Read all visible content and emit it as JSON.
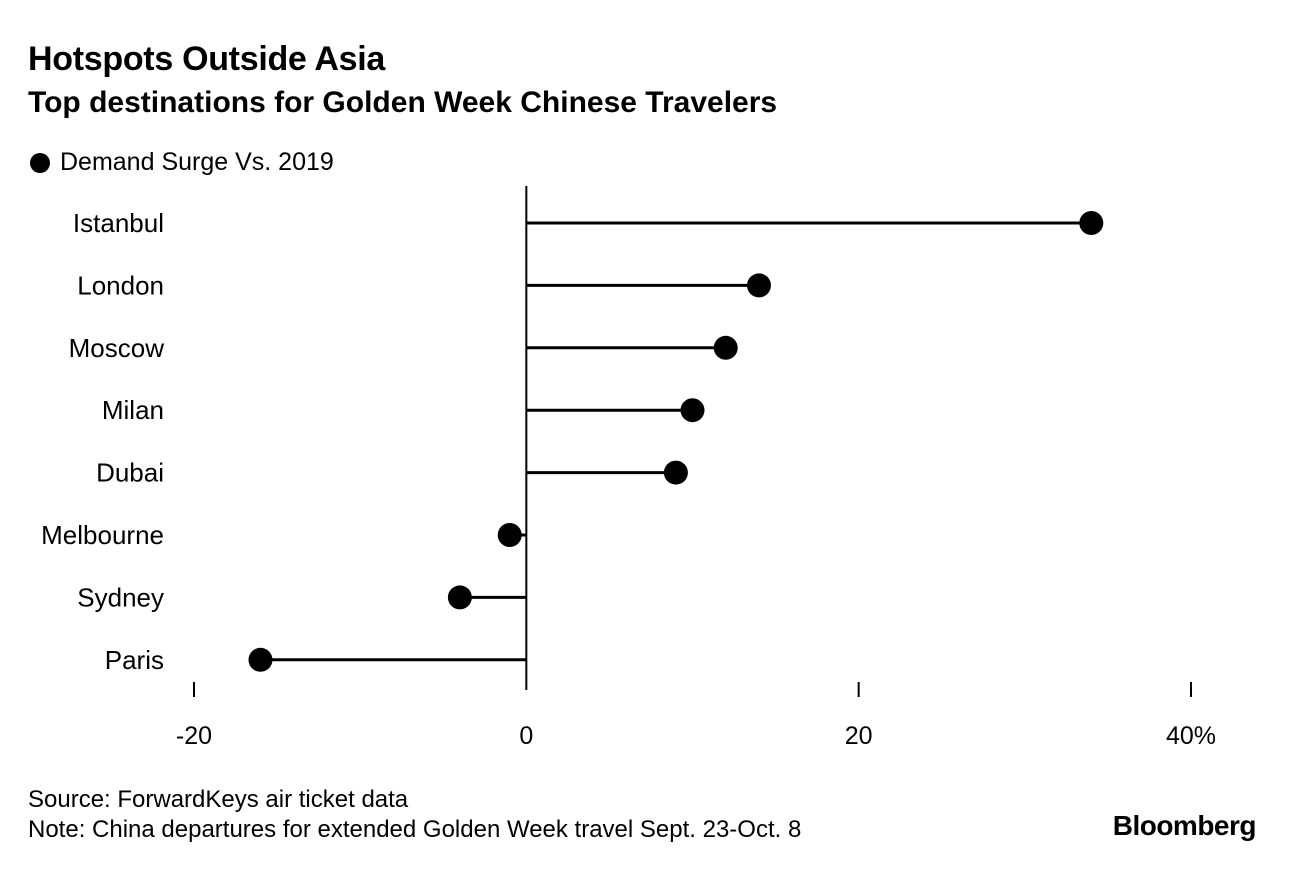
{
  "header": {
    "title": "Hotspots Outside Asia",
    "subtitle": "Top destinations for Golden Week Chinese Travelers"
  },
  "chart_data": {
    "type": "lollipop",
    "title": "Hotspots Outside Asia",
    "subtitle": "Top destinations for Golden Week Chinese Travelers",
    "legend": [
      "Demand Surge Vs. 2019"
    ],
    "legend_position": "top-left",
    "categories": [
      "Istanbul",
      "London",
      "Moscow",
      "Milan",
      "Dubai",
      "Melbourne",
      "Sydney",
      "Paris"
    ],
    "series": [
      {
        "name": "Demand Surge Vs. 2019",
        "values": [
          34,
          14,
          12,
          10,
          9,
          -1,
          -4,
          -16
        ]
      }
    ],
    "xlim": [
      -20,
      40
    ],
    "x_ticks": [
      -20,
      0,
      20,
      40
    ],
    "x_tick_labels": [
      "-20",
      "0",
      "20",
      "40%"
    ],
    "xlabel": "",
    "ylabel": "",
    "grid": false,
    "colors": {
      "marker": "#000000",
      "stem": "#000000",
      "axis": "#000000"
    }
  },
  "footer": {
    "source": "Source: ForwardKeys air ticket data",
    "note": "Note: China departures for extended Golden Week travel Sept. 23-Oct. 8",
    "brand": "Bloomberg"
  }
}
